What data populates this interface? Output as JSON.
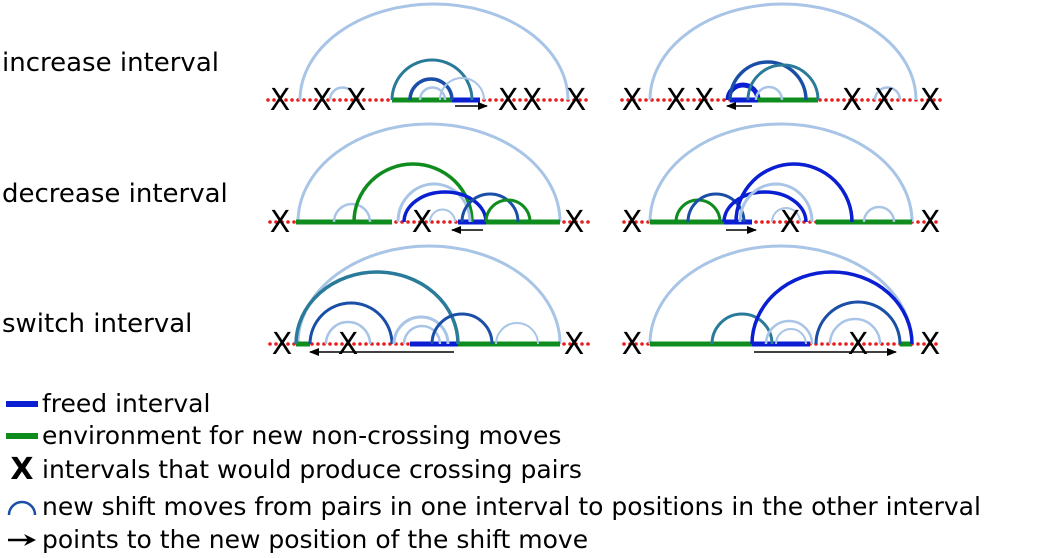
{
  "rows": [
    {
      "label": "increase interval"
    },
    {
      "label": "decrease interval"
    },
    {
      "label": "switch interval"
    }
  ],
  "cross_mark": "X",
  "legend": [
    {
      "key": "blue-bar",
      "text": "freed interval"
    },
    {
      "key": "green-bar",
      "text": "environment for new non-crossing moves"
    },
    {
      "key": "cross",
      "text": "intervals that would produce crossing pairs"
    },
    {
      "key": "arc",
      "text": "new shift moves from pairs in one interval to positions in the other interval"
    },
    {
      "key": "arrow",
      "text": "points to the new position of the shift move"
    }
  ],
  "colors": {
    "freed": "#0a1ed2",
    "environment": "#0f8c1e",
    "outer_arc": "#a8c4e6",
    "shift_arc_a": "#1a4fa8",
    "shift_arc_b": "#2a7a9a",
    "nucleotide": "#e81c1c"
  }
}
